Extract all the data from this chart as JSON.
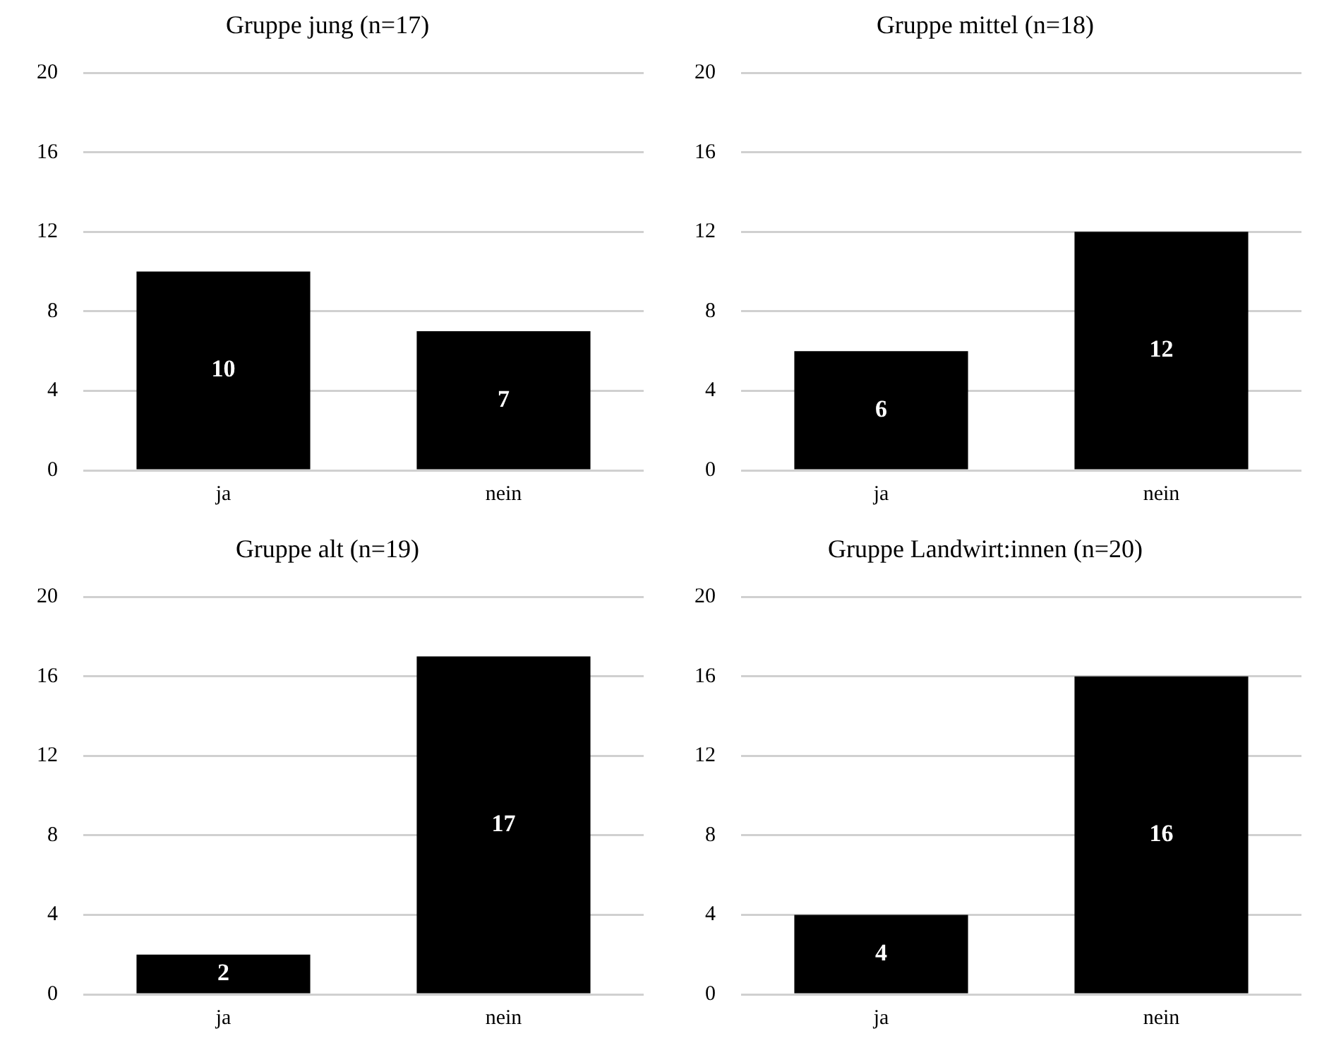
{
  "chart_data": [
    {
      "type": "bar",
      "title": "Gruppe jung (n=17)",
      "categories": [
        "ja",
        "nein"
      ],
      "values": [
        10,
        7
      ],
      "color": "#000000",
      "ylim": [
        0,
        20
      ],
      "yticks": [
        0,
        4,
        8,
        12,
        16,
        20
      ],
      "grid": "y",
      "data_labels": true
    },
    {
      "type": "bar",
      "title": "Gruppe mittel (n=18)",
      "categories": [
        "ja",
        "nein"
      ],
      "values": [
        6,
        12
      ],
      "color": "#000000",
      "ylim": [
        0,
        20
      ],
      "yticks": [
        0,
        4,
        8,
        12,
        16,
        20
      ],
      "grid": "y",
      "data_labels": true
    },
    {
      "type": "bar",
      "title": "Gruppe alt (n=19)",
      "categories": [
        "ja",
        "nein"
      ],
      "values": [
        2,
        17
      ],
      "color": "#000000",
      "ylim": [
        0,
        20
      ],
      "yticks": [
        0,
        4,
        8,
        12,
        16,
        20
      ],
      "grid": "y",
      "data_labels": true
    },
    {
      "type": "bar",
      "title": "Gruppe Landwirt:innen (n=20)",
      "categories": [
        "ja",
        "nein"
      ],
      "values": [
        4,
        16
      ],
      "color": "#000000",
      "ylim": [
        0,
        20
      ],
      "yticks": [
        0,
        4,
        8,
        12,
        16,
        20
      ],
      "grid": "y",
      "data_labels": true
    }
  ]
}
